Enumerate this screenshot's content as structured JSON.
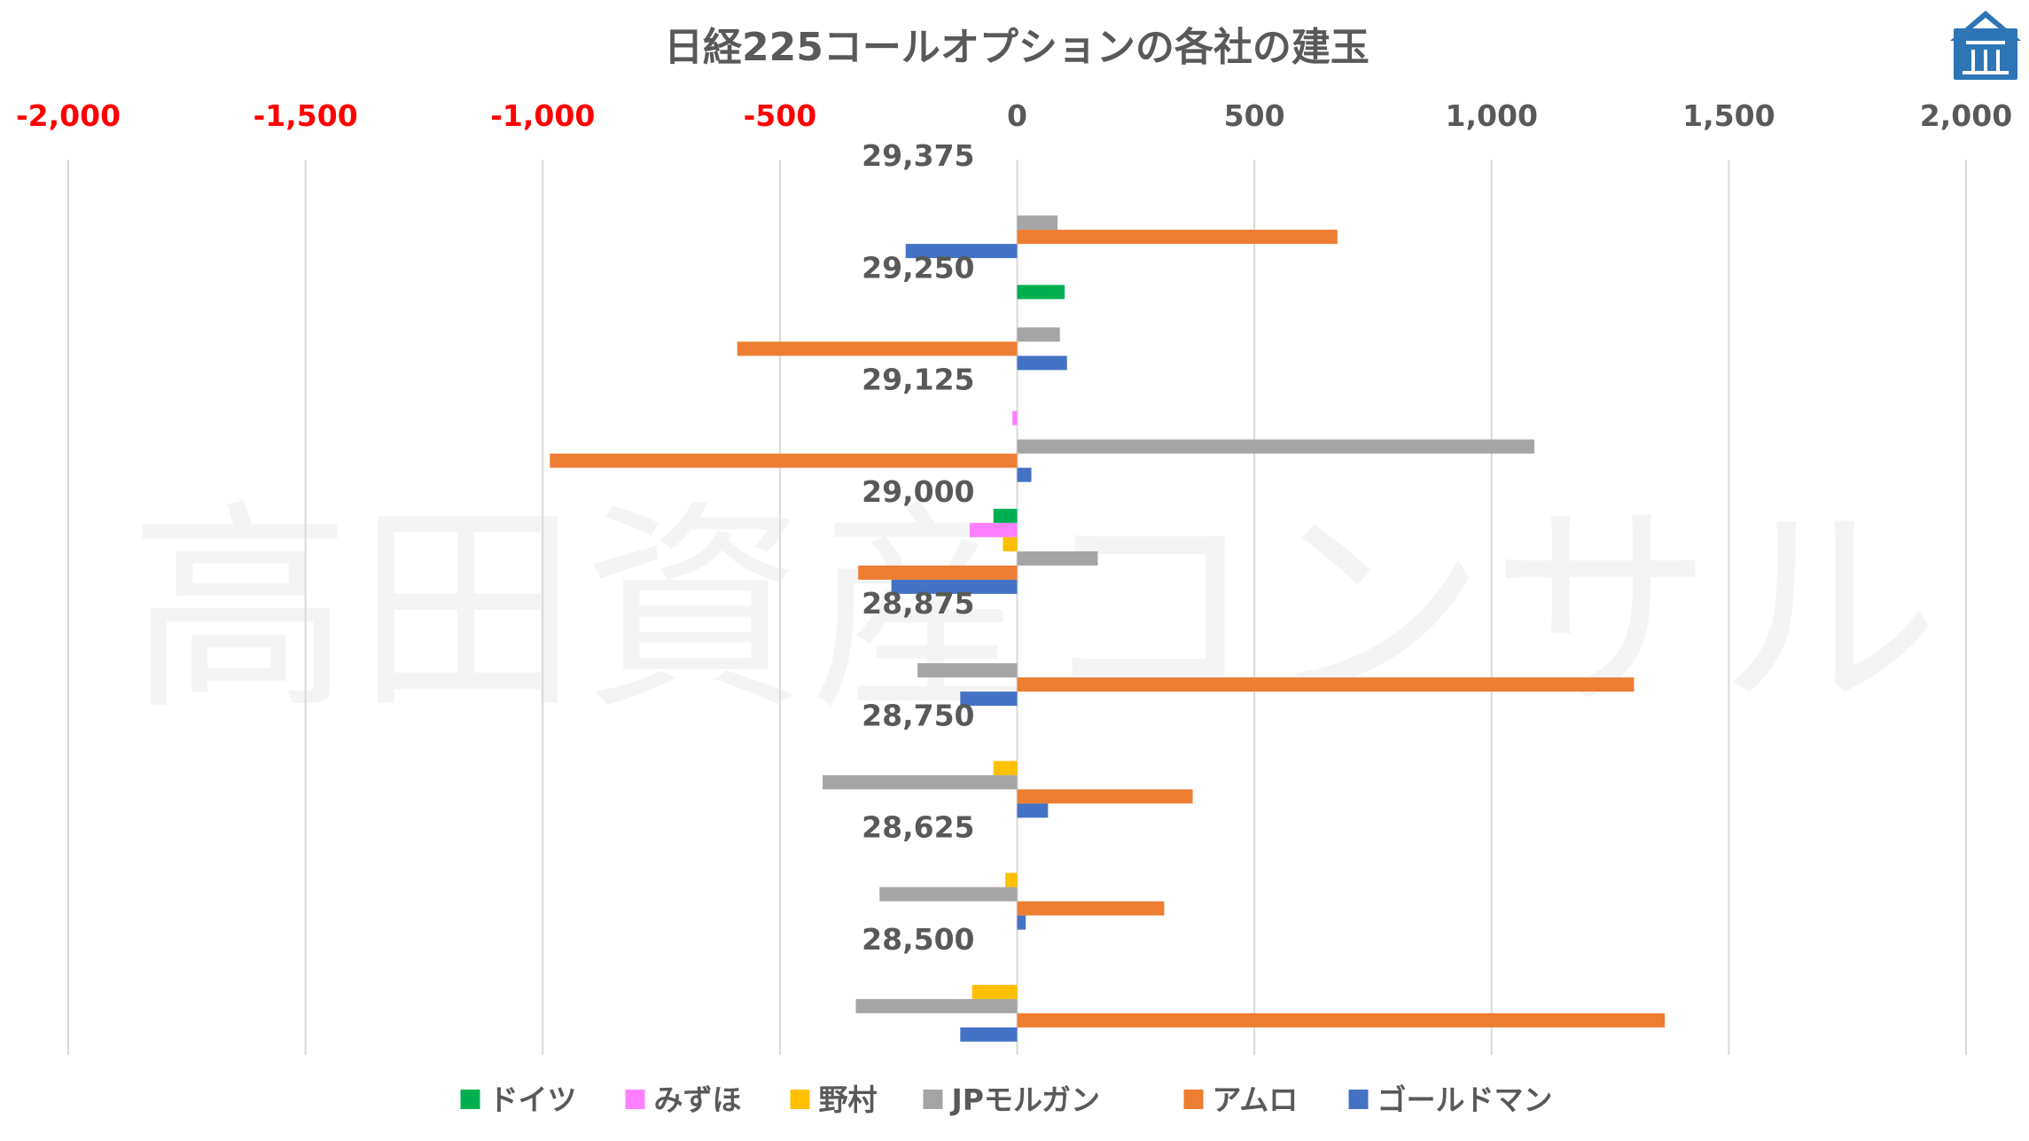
{
  "watermark": "高田資産コンサル",
  "logo_icon": "building-logo-icon",
  "colors": {
    "positive_tick": "#595959",
    "negative_tick": "#ff0000",
    "logo": "#2e75b6"
  },
  "chart_data": {
    "type": "bar",
    "orientation": "horizontal",
    "title": "日経225コールオプションの各社の建玉",
    "xlim": [
      -2000,
      2000
    ],
    "xticks": [
      -2000,
      -1500,
      -1000,
      -500,
      0,
      500,
      1000,
      1500,
      2000
    ],
    "xtick_labels": [
      "-2,000",
      "-1,500",
      "-1,000",
      "-500",
      "0",
      "500",
      "1,000",
      "1,500",
      "2,000"
    ],
    "axis_position": "top",
    "grid": true,
    "legend_position": "bottom",
    "categories": [
      "29,375",
      "29,250",
      "29,125",
      "29,000",
      "28,875",
      "28,750",
      "28,625",
      "28,500"
    ],
    "series": [
      {
        "name": "ドイツ",
        "color": "#00b050",
        "values": [
          0,
          100,
          0,
          -50,
          0,
          0,
          0,
          0
        ]
      },
      {
        "name": "みずほ",
        "color": "#ff80ff",
        "values": [
          0,
          0,
          -10,
          -100,
          0,
          0,
          0,
          0
        ]
      },
      {
        "name": "野村",
        "color": "#ffc000",
        "values": [
          0,
          0,
          0,
          -30,
          0,
          -50,
          -25,
          -95
        ]
      },
      {
        "name": "JPモルガン",
        "color": "#a5a5a5",
        "values": [
          85,
          90,
          1090,
          170,
          -210,
          -410,
          -290,
          -340
        ]
      },
      {
        "name": "アムロ",
        "color": "#ed7d31",
        "values": [
          675,
          -590,
          -985,
          -335,
          1300,
          370,
          310,
          1365
        ]
      },
      {
        "name": "ゴールドマン",
        "color": "#4472c4",
        "values": [
          -235,
          105,
          30,
          -265,
          -120,
          65,
          18,
          -120
        ]
      }
    ]
  }
}
